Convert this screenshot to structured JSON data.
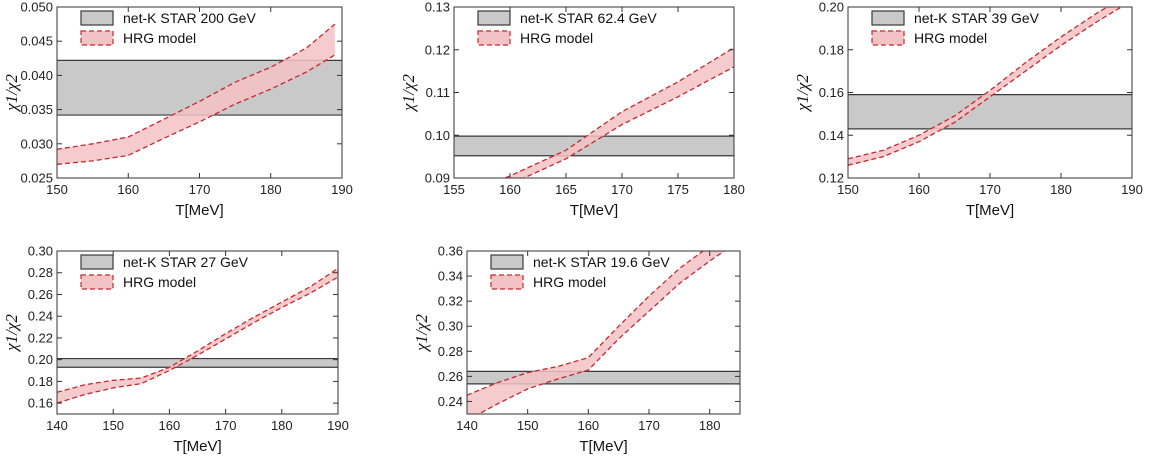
{
  "colors": {
    "star_fill": "#c9c9c9",
    "star_line": "#3a3a3a",
    "hrg_fill": "#f3c2c4",
    "hrg_line": "#c8282c",
    "axis": "#333333"
  },
  "chart_data": [
    {
      "type": "area",
      "xlabel": "T[MeV]",
      "ylabel": "χ1/χ2",
      "xlim": [
        150,
        190
      ],
      "ylim": [
        0.025,
        0.05
      ],
      "xticks": [
        150,
        160,
        170,
        180,
        190
      ],
      "xtick_labels": [
        "150",
        "160",
        "170",
        "180",
        "190"
      ],
      "yticks": [
        0.025,
        0.03,
        0.035,
        0.04,
        0.045,
        0.05
      ],
      "ytick_labels": [
        "0.025",
        "0.030",
        "0.035",
        "0.040",
        "0.045",
        "0.050"
      ],
      "legend": [
        "net-K STAR 200 GeV",
        "HRG model"
      ],
      "series": [
        {
          "name": "net-K STAR 200 GeV",
          "band": [
            0.0342,
            0.0422
          ]
        },
        {
          "name": "HRG model",
          "x": [
            150,
            155,
            160,
            165,
            170,
            175,
            180,
            185,
            189
          ],
          "lower": [
            0.027,
            0.0275,
            0.0283,
            0.0308,
            0.0332,
            0.0358,
            0.038,
            0.0405,
            0.043
          ],
          "upper": [
            0.0292,
            0.03,
            0.031,
            0.0336,
            0.0362,
            0.039,
            0.0412,
            0.044,
            0.0475
          ]
        }
      ]
    },
    {
      "type": "area",
      "xlabel": "T[MeV]",
      "ylabel": "χ1/χ2",
      "xlim": [
        155,
        180
      ],
      "ylim": [
        0.09,
        0.13
      ],
      "xticks": [
        155,
        160,
        165,
        170,
        175,
        180
      ],
      "xtick_labels": [
        "155",
        "160",
        "165",
        "170",
        "175",
        "180"
      ],
      "yticks": [
        0.09,
        0.1,
        0.11,
        0.12,
        0.13
      ],
      "ytick_labels": [
        "0.09",
        "0.10",
        "0.11",
        "0.12",
        "0.13"
      ],
      "legend": [
        "net-K STAR 62.4 GeV",
        "HRG model"
      ],
      "series": [
        {
          "name": "net-K STAR 62.4 GeV",
          "band": [
            0.0952,
            0.0998
          ]
        },
        {
          "name": "HRG model",
          "x": [
            155,
            160,
            165,
            170,
            175,
            180
          ],
          "lower": [
            0.083,
            0.0885,
            0.0945,
            0.1025,
            0.109,
            0.116
          ],
          "upper": [
            0.085,
            0.0905,
            0.0965,
            0.1055,
            0.1125,
            0.1205
          ]
        }
      ]
    },
    {
      "type": "area",
      "xlabel": "T[MeV]",
      "ylabel": "χ1/χ2",
      "xlim": [
        150,
        190
      ],
      "ylim": [
        0.12,
        0.2
      ],
      "xticks": [
        150,
        160,
        170,
        180,
        190
      ],
      "xtick_labels": [
        "150",
        "160",
        "170",
        "180",
        "190"
      ],
      "yticks": [
        0.12,
        0.14,
        0.16,
        0.18,
        0.2
      ],
      "ytick_labels": [
        "0.12",
        "0.14",
        "0.16",
        "0.18",
        "0.20"
      ],
      "legend": [
        "net-K STAR 39 GeV",
        "HRG model"
      ],
      "series": [
        {
          "name": "net-K STAR 39 GeV",
          "band": [
            0.143,
            0.159
          ]
        },
        {
          "name": "HRG model",
          "x": [
            150,
            155,
            160,
            165,
            170,
            175,
            180,
            185,
            190
          ],
          "lower": [
            0.126,
            0.13,
            0.137,
            0.146,
            0.158,
            0.17,
            0.182,
            0.193,
            0.203
          ],
          "upper": [
            0.129,
            0.133,
            0.14,
            0.149,
            0.161,
            0.174,
            0.186,
            0.197,
            0.207
          ]
        }
      ]
    },
    {
      "type": "area",
      "xlabel": "T[MeV]",
      "ylabel": "χ1/χ2",
      "xlim": [
        140,
        190
      ],
      "ylim": [
        0.15,
        0.3
      ],
      "xticks": [
        140,
        150,
        160,
        170,
        180,
        190
      ],
      "xtick_labels": [
        "140",
        "150",
        "160",
        "170",
        "180",
        "190"
      ],
      "yticks": [
        0.16,
        0.18,
        0.2,
        0.22,
        0.24,
        0.26,
        0.28,
        0.3
      ],
      "ytick_labels": [
        "0.16",
        "0.18",
        "0.20",
        "0.22",
        "0.24",
        "0.26",
        "0.28",
        "0.30"
      ],
      "legend": [
        "net-K STAR 27 GeV",
        "HRG model"
      ],
      "series": [
        {
          "name": "net-K STAR 27 GeV",
          "band": [
            0.193,
            0.201
          ]
        },
        {
          "name": "HRG model",
          "x": [
            140,
            145,
            150,
            155,
            160,
            165,
            170,
            175,
            180,
            185,
            190
          ],
          "lower": [
            0.16,
            0.168,
            0.174,
            0.178,
            0.19,
            0.204,
            0.219,
            0.234,
            0.248,
            0.261,
            0.276
          ],
          "upper": [
            0.17,
            0.177,
            0.181,
            0.183,
            0.193,
            0.208,
            0.224,
            0.239,
            0.253,
            0.267,
            0.284
          ]
        }
      ]
    },
    {
      "type": "area",
      "xlabel": "T[MeV]",
      "ylabel": "χ1/χ2",
      "xlim": [
        140,
        185
      ],
      "ylim": [
        0.23,
        0.36
      ],
      "xticks": [
        140,
        150,
        160,
        170,
        180
      ],
      "xtick_labels": [
        "140",
        "150",
        "160",
        "170",
        "180"
      ],
      "yticks": [
        0.24,
        0.26,
        0.28,
        0.3,
        0.32,
        0.34,
        0.36
      ],
      "ytick_labels": [
        "0.24",
        "0.26",
        "0.28",
        "0.30",
        "0.32",
        "0.34",
        "0.36"
      ],
      "legend": [
        "net-K STAR 19.6 GeV",
        "HRG model"
      ],
      "series": [
        {
          "name": "net-K STAR 19.6 GeV",
          "band": [
            0.254,
            0.264
          ]
        },
        {
          "name": "HRG model",
          "x": [
            140,
            145,
            150,
            155,
            160,
            165,
            170,
            175,
            180,
            183
          ],
          "lower": [
            0.225,
            0.238,
            0.25,
            0.258,
            0.265,
            0.29,
            0.312,
            0.334,
            0.352,
            0.362
          ],
          "upper": [
            0.245,
            0.255,
            0.263,
            0.268,
            0.275,
            0.3,
            0.324,
            0.346,
            0.364,
            0.372
          ]
        }
      ]
    }
  ]
}
